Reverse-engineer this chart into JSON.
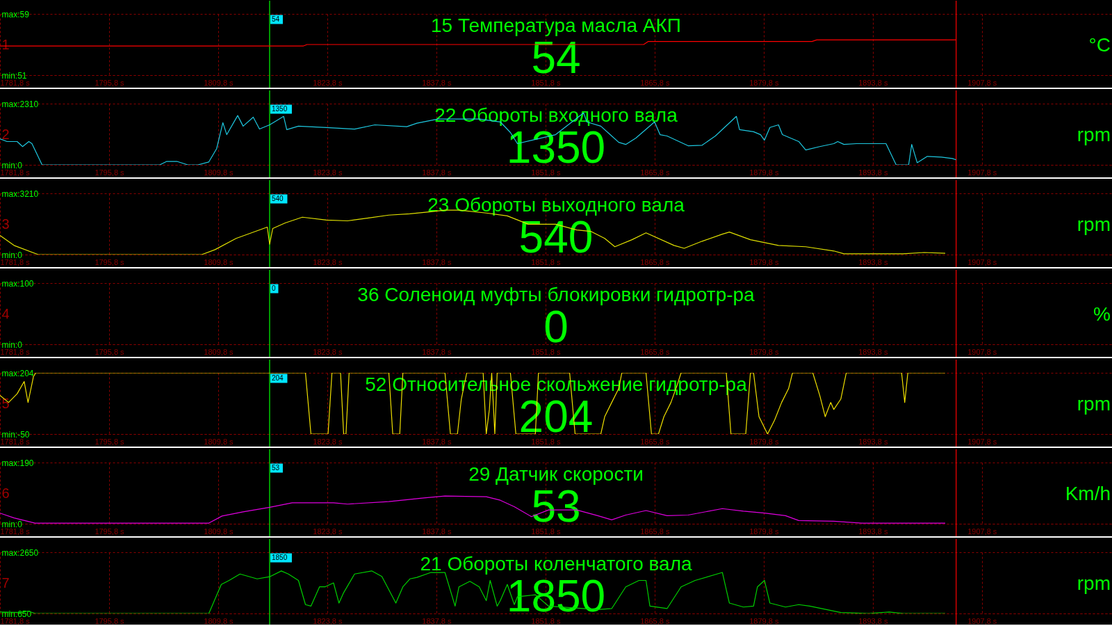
{
  "chart_data": [
    {
      "type": "line",
      "title": "15 Температура масла АКП",
      "ylabel": "1",
      "y2label": "°C",
      "annotations": [
        "54",
        "54"
      ],
      "x": [
        1781.8,
        1820.7,
        1821.2,
        1864.4,
        1865.0,
        1886.0,
        1886.6,
        1904.5
      ],
      "series": [
        {
          "color": "#ff0000",
          "values": [
            54.8,
            54.8,
            55.0,
            55.0,
            55.4,
            55.4,
            55.6,
            55.6
          ]
        }
      ],
      "xlim": [
        1781.8,
        1924.5
      ],
      "xticks": [
        {
          "value": 1781.8,
          "label": "1781,8 s"
        },
        {
          "value": 1795.8,
          "label": "1795,8 s"
        },
        {
          "value": 1809.8,
          "label": "1809,8 s"
        },
        {
          "value": 1823.8,
          "label": "1823,8 s"
        },
        {
          "value": 1837.8,
          "label": "1837,8 s"
        },
        {
          "value": 1851.8,
          "label": "1851,8 s"
        },
        {
          "value": 1865.8,
          "label": "1865,8 s"
        },
        {
          "value": 1879.8,
          "label": "1879,8 s"
        },
        {
          "value": 1893.8,
          "label": "1893,8 s"
        },
        {
          "value": 1907.8,
          "label": "1907,8 s"
        }
      ],
      "ylim": [
        51,
        59
      ],
      "yticks": [
        {
          "value": 51,
          "label": "min:51"
        },
        {
          "value": 59,
          "label": "max:59"
        }
      ],
      "grid": true,
      "ref_lines": [
        {
          "axis": "x",
          "value": 1816.4,
          "color": "#00ff00"
        },
        {
          "axis": "x",
          "value": 1904.5,
          "color": "#ff0000"
        }
      ]
    },
    {
      "type": "line",
      "title": "22 Обороты входного вала",
      "ylabel": "2",
      "y2label": "rpm",
      "annotations": [
        "1350",
        "1350"
      ],
      "x": [
        1781.8,
        1782.7,
        1784.0,
        1784.7,
        1785.5,
        1785.9,
        1787.2,
        1802.3,
        1803.2,
        1804.5,
        1805.9,
        1807.2,
        1808.6,
        1809.6,
        1810.4,
        1810.9,
        1812.3,
        1813.0,
        1814.3,
        1815.1,
        1816.4,
        1818.2,
        1818.6,
        1820.1,
        1823.7,
        1827.3,
        1829.9,
        1834.0,
        1835.3,
        1838.0,
        1843.3,
        1846.0,
        1847.3,
        1848.2,
        1853.1,
        1856.7,
        1857.1,
        1858.9,
        1860.3,
        1861.2,
        1862.1,
        1863.4,
        1865.8,
        1866.5,
        1867.4,
        1870.1,
        1871.9,
        1873.6,
        1876.3,
        1876.7,
        1878.5,
        1879.4,
        1879.9,
        1880.6,
        1881.7,
        1882.2,
        1884.3,
        1885.2,
        1887.0,
        1888.8,
        1889.3,
        1890.1,
        1891.7,
        1894.2,
        1895.5,
        1896.8,
        1898.4,
        1898.8,
        1899.5,
        1900.8,
        1902.6,
        1904.0,
        1904.5
      ],
      "series": [
        {
          "color": "#1ec8e0",
          "values": [
            980,
            880,
            880,
            690,
            880,
            800,
            0,
            0,
            130,
            130,
            0,
            0,
            110,
            610,
            1590,
            1140,
            1860,
            1460,
            1800,
            1350,
            1510,
            1830,
            1330,
            1460,
            1410,
            1350,
            1510,
            1440,
            1570,
            1730,
            1730,
            1620,
            1220,
            800,
            1140,
            1960,
            1620,
            1460,
            1090,
            850,
            770,
            1010,
            1620,
            1140,
            1090,
            720,
            740,
            1090,
            1830,
            1330,
            1250,
            1140,
            930,
            1410,
            1510,
            1140,
            880,
            560,
            690,
            800,
            880,
            770,
            800,
            800,
            800,
            0,
            0,
            770,
            80,
            320,
            290,
            240,
            190
          ]
        }
      ],
      "xlim": [
        1781.8,
        1924.5
      ],
      "xticks": [
        {
          "value": 1781.8,
          "label": "1781,8 s"
        },
        {
          "value": 1795.8,
          "label": "1795,8 s"
        },
        {
          "value": 1809.8,
          "label": "1809,8 s"
        },
        {
          "value": 1823.8,
          "label": "1823,8 s"
        },
        {
          "value": 1837.8,
          "label": "1837,8 s"
        },
        {
          "value": 1851.8,
          "label": "1851,8 s"
        },
        {
          "value": 1865.8,
          "label": "1865,8 s"
        },
        {
          "value": 1879.8,
          "label": "1879,8 s"
        },
        {
          "value": 1893.8,
          "label": "1893,8 s"
        },
        {
          "value": 1907.8,
          "label": "1907,8 s"
        }
      ],
      "ylim": [
        0,
        2310
      ],
      "yticks": [
        {
          "value": 0,
          "label": "min:0"
        },
        {
          "value": 2310,
          "label": "max:2310"
        }
      ],
      "grid": true,
      "ref_lines": [
        {
          "axis": "x",
          "value": 1816.4,
          "color": "#00ff00"
        },
        {
          "axis": "x",
          "value": 1904.5,
          "color": "#ff0000"
        }
      ]
    },
    {
      "type": "line",
      "title": "23 Обороты выходного вала",
      "ylabel": "3",
      "y2label": "rpm",
      "annotations": [
        "540",
        "540"
      ],
      "x": [
        1781.8,
        1783.6,
        1786.7,
        1803.2,
        1807.7,
        1809.4,
        1812.1,
        1816.1,
        1816.4,
        1816.8,
        1818.4,
        1820.6,
        1823.7,
        1826.4,
        1829.1,
        1831.7,
        1834.4,
        1837.1,
        1838.9,
        1840.7,
        1844.2,
        1846.9,
        1849.6,
        1853.1,
        1855.8,
        1857.6,
        1859.4,
        1860.7,
        1862.9,
        1864.7,
        1868.3,
        1869.6,
        1871.9,
        1874.5,
        1875.4,
        1878.1,
        1881.7,
        1885.2,
        1888.8,
        1890.1,
        1897.7,
        1900.4,
        1903.1
      ],
      "series": [
        {
          "color": "#e0e000",
          "values": [
            1000,
            480,
            0,
            0,
            0,
            260,
            850,
            1440,
            540,
            1370,
            1660,
            1960,
            1810,
            1770,
            1920,
            2070,
            2140,
            2250,
            2330,
            2330,
            2180,
            2030,
            1590,
            1590,
            1290,
            1220,
            850,
            410,
            780,
            1140,
            480,
            330,
            700,
            1070,
            1180,
            780,
            480,
            410,
            190,
            40,
            40,
            110,
            70
          ]
        }
      ],
      "xlim": [
        1781.8,
        1924.5
      ],
      "xticks": [
        {
          "value": 1781.8,
          "label": "1781,8 s"
        },
        {
          "value": 1795.8,
          "label": "1795,8 s"
        },
        {
          "value": 1809.8,
          "label": "1809,8 s"
        },
        {
          "value": 1823.8,
          "label": "1823,8 s"
        },
        {
          "value": 1837.8,
          "label": "1837,8 s"
        },
        {
          "value": 1851.8,
          "label": "1851,8 s"
        },
        {
          "value": 1865.8,
          "label": "1865,8 s"
        },
        {
          "value": 1879.8,
          "label": "1879,8 s"
        },
        {
          "value": 1893.8,
          "label": "1893,8 s"
        },
        {
          "value": 1907.8,
          "label": "1907,8 s"
        }
      ],
      "ylim": [
        0,
        3210
      ],
      "yticks": [
        {
          "value": 0,
          "label": "min:0"
        },
        {
          "value": 3210,
          "label": "max:3210"
        }
      ],
      "grid": true,
      "ref_lines": [
        {
          "axis": "x",
          "value": 1816.4,
          "color": "#00ff00"
        },
        {
          "axis": "x",
          "value": 1904.5,
          "color": "#ff0000"
        }
      ]
    },
    {
      "type": "line",
      "title": "36 Соленоид муфты блокировки гидротр-ра",
      "ylabel": "4",
      "y2label": "%",
      "annotations": [
        "0",
        "0"
      ],
      "xlim": [
        1781.8,
        1924.5
      ],
      "xticks": [
        {
          "value": 1781.8,
          "label": "1781,8 s"
        },
        {
          "value": 1795.8,
          "label": "1795,8 s"
        },
        {
          "value": 1809.8,
          "label": "1809,8 s"
        },
        {
          "value": 1823.8,
          "label": "1823,8 s"
        },
        {
          "value": 1837.8,
          "label": "1837,8 s"
        },
        {
          "value": 1851.8,
          "label": "1851,8 s"
        },
        {
          "value": 1865.8,
          "label": "1865,8 s"
        },
        {
          "value": 1879.8,
          "label": "1879,8 s"
        },
        {
          "value": 1893.8,
          "label": "1893,8 s"
        },
        {
          "value": 1907.8,
          "label": "1907,8 s"
        }
      ],
      "ylim": [
        0,
        100
      ],
      "yticks": [
        {
          "value": 0,
          "label": "min:0"
        },
        {
          "value": 100,
          "label": "max:100"
        }
      ],
      "grid": true,
      "ref_lines": [
        {
          "axis": "x",
          "value": 1816.4,
          "color": "#00ff00"
        },
        {
          "axis": "x",
          "value": 1904.5,
          "color": "#ff0000"
        }
      ]
    },
    {
      "type": "line",
      "title": "52 Относительное скольжение гидротр-ра",
      "ylabel": "5",
      "y2label": "rpm",
      "annotations": [
        "204",
        "204"
      ],
      "x": [
        1781.8,
        1782.9,
        1784.0,
        1784.9,
        1785.4,
        1786.1,
        1786.4,
        1821.0,
        1821.7,
        1823.9,
        1824.4,
        1825.5,
        1825.9,
        1826.2,
        1826.6,
        1831.7,
        1832.2,
        1833.1,
        1833.5,
        1838.9,
        1839.6,
        1840.5,
        1841.0,
        1841.7,
        1843.8,
        1844.2,
        1844.6,
        1844.9,
        1845.3,
        1845.6,
        1847.3,
        1848.0,
        1850.5,
        1850.9,
        1854.9,
        1855.6,
        1858.9,
        1859.4,
        1860.3,
        1861.2,
        1861.6,
        1864.7,
        1865.4,
        1866.3,
        1867.0,
        1867.9,
        1868.7,
        1869.2,
        1875.0,
        1875.6,
        1877.5,
        1878.1,
        1878.5,
        1879.2,
        1880.3,
        1881.2,
        1882.1,
        1883.0,
        1883.5,
        1886.1,
        1887.0,
        1887.7,
        1888.4,
        1888.8,
        1889.7,
        1890.4,
        1897.5,
        1897.9,
        1898.3,
        1903.1
      ],
      "series": [
        {
          "color": "#f0e000",
          "values": [
            110,
            81,
            117,
            168,
            81,
            189,
            204,
            204,
            -50,
            -50,
            204,
            204,
            -50,
            -50,
            204,
            204,
            -50,
            -50,
            204,
            204,
            -50,
            -50,
            95,
            204,
            204,
            -50,
            52,
            204,
            -50,
            204,
            204,
            -50,
            -50,
            204,
            204,
            -50,
            -50,
            22,
            81,
            139,
            204,
            204,
            -50,
            -50,
            22,
            81,
            153,
            204,
            204,
            -50,
            -50,
            204,
            204,
            22,
            -50,
            8,
            81,
            139,
            204,
            204,
            110,
            22,
            81,
            52,
            95,
            204,
            204,
            81,
            204,
            204
          ]
        }
      ],
      "xlim": [
        1781.8,
        1924.5
      ],
      "xticks": [
        {
          "value": 1781.8,
          "label": "1781,8 s"
        },
        {
          "value": 1795.8,
          "label": "1795,8 s"
        },
        {
          "value": 1809.8,
          "label": "1809,8 s"
        },
        {
          "value": 1823.8,
          "label": "1823,8 s"
        },
        {
          "value": 1837.8,
          "label": "1837,8 s"
        },
        {
          "value": 1851.8,
          "label": "1851,8 s"
        },
        {
          "value": 1865.8,
          "label": "1865,8 s"
        },
        {
          "value": 1879.8,
          "label": "1879,8 s"
        },
        {
          "value": 1893.8,
          "label": "1893,8 s"
        },
        {
          "value": 1907.8,
          "label": "1907,8 s"
        }
      ],
      "ylim": [
        -50,
        204
      ],
      "yticks": [
        {
          "value": -50,
          "label": "min:-50"
        },
        {
          "value": 204,
          "label": "max:204"
        }
      ],
      "grid": true,
      "ref_lines": [
        {
          "axis": "x",
          "value": 1816.4,
          "color": "#00ff00"
        },
        {
          "axis": "x",
          "value": 1904.5,
          "color": "#ff0000"
        }
      ]
    },
    {
      "type": "line",
      "title": "29 Датчик скорости",
      "ylabel": "6",
      "y2label": "Km/h",
      "annotations": [
        "53",
        "53"
      ],
      "x": [
        1781.8,
        1783.6,
        1786.3,
        1808.6,
        1810.3,
        1813.0,
        1816.4,
        1819.3,
        1824.6,
        1826.4,
        1831.7,
        1836.2,
        1838.9,
        1844.2,
        1846.0,
        1847.8,
        1850.0,
        1852.2,
        1855.8,
        1858.5,
        1860.3,
        1862.1,
        1864.7,
        1867.4,
        1870.1,
        1874.5,
        1877.2,
        1879.9,
        1882.6,
        1884.3,
        1888.8,
        1892.4,
        1903.1
      ],
      "series": [
        {
          "color": "#e000e0",
          "values": [
            33,
            18,
            2,
            2,
            24,
            37,
            51,
            65,
            65,
            61,
            69,
            80,
            86,
            84,
            73,
            53,
            22,
            43,
            43,
            25,
            12,
            27,
            41,
            25,
            27,
            47,
            39,
            33,
            25,
            10,
            8,
            2,
            2
          ]
        }
      ],
      "xlim": [
        1781.8,
        1924.5
      ],
      "xticks": [
        {
          "value": 1781.8,
          "label": "1781,8 s"
        },
        {
          "value": 1795.8,
          "label": "1795,8 s"
        },
        {
          "value": 1809.8,
          "label": "1809,8 s"
        },
        {
          "value": 1823.8,
          "label": "1823,8 s"
        },
        {
          "value": 1837.8,
          "label": "1837,8 s"
        },
        {
          "value": 1851.8,
          "label": "1851,8 s"
        },
        {
          "value": 1865.8,
          "label": "1865,8 s"
        },
        {
          "value": 1879.8,
          "label": "1879,8 s"
        },
        {
          "value": 1893.8,
          "label": "1893,8 s"
        },
        {
          "value": 1907.8,
          "label": "1907,8 s"
        }
      ],
      "ylim": [
        0,
        190
      ],
      "yticks": [
        {
          "value": 0,
          "label": "min:0"
        },
        {
          "value": 190,
          "label": "max:190"
        }
      ],
      "grid": true,
      "ref_lines": [
        {
          "axis": "x",
          "value": 1816.4,
          "color": "#00ff00"
        },
        {
          "axis": "x",
          "value": 1904.5,
          "color": "#ff0000"
        }
      ]
    },
    {
      "type": "line",
      "title": "21 Обороты коленчатого вала",
      "ylabel": "7",
      "y2label": "rpm",
      "annotations": [
        "1850",
        "1850"
      ],
      "x": [
        1781.8,
        1784.5,
        1785.4,
        1786.3,
        1808.6,
        1810.2,
        1811.2,
        1812.6,
        1814.8,
        1816.4,
        1817.9,
        1818.8,
        1820.1,
        1821.0,
        1821.7,
        1822.8,
        1823.5,
        1824.6,
        1825.3,
        1825.9,
        1827.3,
        1829.5,
        1830.8,
        1832.6,
        1833.5,
        1834.4,
        1835.3,
        1837.1,
        1838.9,
        1840.2,
        1840.7,
        1842.1,
        1843.3,
        1844.2,
        1844.7,
        1845.6,
        1846.0,
        1846.9,
        1847.8,
        1848.2,
        1850.5,
        1852.2,
        1858.5,
        1860.3,
        1862.1,
        1863.8,
        1864.7,
        1865.2,
        1867.4,
        1869.2,
        1871.0,
        1874.5,
        1875.4,
        1877.2,
        1878.5,
        1879.0,
        1879.9,
        1880.6,
        1882.6,
        1884.3,
        1885.7,
        1889.7,
        1893.3,
        1895.9,
        1897.7,
        1903.1
      ],
      "series": [
        {
          "color": "#00d000",
          "values": [
            700,
            680,
            730,
            650,
            650,
            1600,
            1730,
            1940,
            1780,
            1850,
            2040,
            1940,
            1730,
            940,
            890,
            1520,
            1520,
            1650,
            990,
            1330,
            1940,
            2040,
            1860,
            990,
            1520,
            1780,
            1830,
            1990,
            1990,
            890,
            1520,
            1700,
            1520,
            1070,
            1730,
            890,
            1070,
            1600,
            940,
            1200,
            1260,
            890,
            780,
            810,
            1520,
            1730,
            1730,
            890,
            810,
            1520,
            1730,
            1990,
            990,
            860,
            890,
            1520,
            1730,
            990,
            860,
            940,
            890,
            680,
            650,
            700,
            650,
            650
          ]
        }
      ],
      "xlim": [
        1781.8,
        1924.5
      ],
      "xticks": [
        {
          "value": 1781.8,
          "label": "1781,8 s"
        },
        {
          "value": 1795.8,
          "label": "1795,8 s"
        },
        {
          "value": 1809.8,
          "label": "1809,8 s"
        },
        {
          "value": 1823.8,
          "label": "1823,8 s"
        },
        {
          "value": 1837.8,
          "label": "1837,8 s"
        },
        {
          "value": 1851.8,
          "label": "1851,8 s"
        },
        {
          "value": 1865.8,
          "label": "1865,8 s"
        },
        {
          "value": 1879.8,
          "label": "1879,8 s"
        },
        {
          "value": 1893.8,
          "label": "1893,8 s"
        },
        {
          "value": 1907.8,
          "label": "1907,8 s"
        }
      ],
      "ylim": [
        650,
        2650
      ],
      "yticks": [
        {
          "value": 650,
          "label": "min:650"
        },
        {
          "value": 2650,
          "label": "max:2650"
        }
      ],
      "grid": true,
      "ref_lines": [
        {
          "axis": "x",
          "value": 1816.4,
          "color": "#00ff00"
        },
        {
          "axis": "x",
          "value": 1904.5,
          "color": "#ff0000"
        }
      ]
    }
  ]
}
